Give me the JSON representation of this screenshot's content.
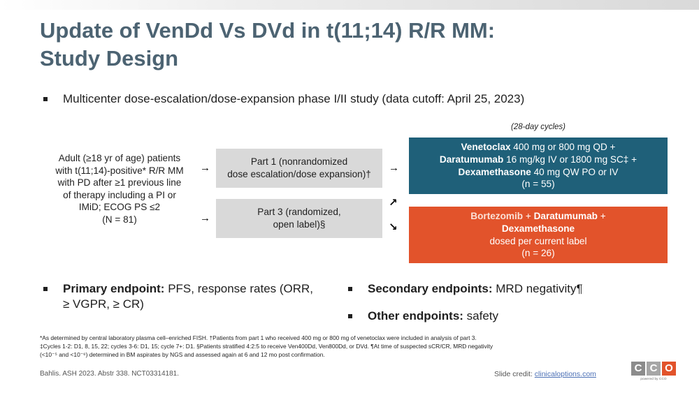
{
  "title": {
    "line1": "Update of VenDd Vs DVd in t(11;14) R/R MM:",
    "line2": "Study Design"
  },
  "main_bullet": "Multicenter dose-escalation/dose-expansion phase I/II study (data cutoff: April 25, 2023)",
  "patients": {
    "lines": [
      "Adult (≥18 yr of age) patients",
      "with t(11;14)-positive* R/R MM",
      "with PD after ≥1 previous line",
      "of therapy including a PI or",
      "IMiD; ECOG PS ≤2",
      "(N = 81)"
    ]
  },
  "parts": {
    "part1": {
      "line1": "Part 1 (nonrandomized",
      "line2": "dose escalation/dose expansion)†"
    },
    "part3": {
      "line1": "Part 3 (randomized,",
      "line2": "open label)§"
    }
  },
  "arrows": {
    "right": "→",
    "up_right": "↗",
    "down_right": "↘"
  },
  "cycles_note": "(28-day cycles)",
  "arm_ven": {
    "l1_bold": "Venetoclax",
    "l1_rest": " 400 mg or 800 mg QD +",
    "l2_bold": "Daratumumab",
    "l2_rest": " 16 mg/kg IV or 1800 mg SC‡ +",
    "l3_bold": "Dexamethasone",
    "l3_rest": " 40 mg QW PO or IV",
    "n": "(n = 55)"
  },
  "arm_bor": {
    "l1_a": "Bortezomib",
    "l1_plus": " + ",
    "l1_b": "Daratumumab",
    "l1_end": " +",
    "l2": "Dexamethasone",
    "l3": "dosed per current label",
    "n": "(n = 26)"
  },
  "endpoints": {
    "primary_label": "Primary endpoint:",
    "primary_text": " PFS, response rates (ORR, ≥ VGPR, ≥ CR)",
    "secondary_label": "Secondary endpoints:",
    "secondary_text": " MRD negativity¶",
    "other_label": "Other endpoints:",
    "other_text": " safety"
  },
  "footnotes": {
    "line1": "*As determined by central laboratory plasma cell–enriched FISH. †Patients from part 1 who received 400 mg or 800 mg of venetoclax were included in analysis of part 3.",
    "line2": "‡Cycles 1-2: D1, 8, 15, 22; cycles 3-6: D1, 15; cycle 7+: D1. §Patients stratified 4:2:5 to receive Ven400Dd, Ven800Dd, or DVd. ¶At time of suspected sCR/CR, MRD negativity",
    "line3": "(<10⁻⁵ and <10⁻⁶) determined in BM aspirates by NGS and assessed again at 6 and 12 mo post confirmation."
  },
  "citation": "Bahlis. ASH 2023. Abstr 338. NCT03314181.",
  "credit": {
    "label": "Slide credit: ",
    "link": "clinicaloptions.com"
  },
  "logo": {
    "c1": "C",
    "c2": "C",
    "c3": "O",
    "sub": "powered by CCO"
  }
}
